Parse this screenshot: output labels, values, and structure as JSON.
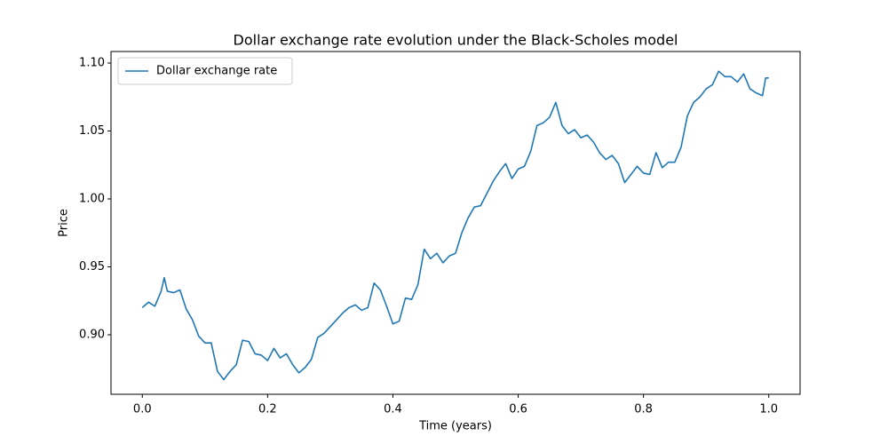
{
  "chart_data": {
    "type": "line",
    "title": "Dollar exchange rate evolution under the Black-Scholes model",
    "xlabel": "Time (years)",
    "ylabel": "Price",
    "legend": "upper left",
    "x": [
      0,
      0.01,
      0.02,
      0.03,
      0.035,
      0.04,
      0.05,
      0.06,
      0.07,
      0.08,
      0.09,
      0.1,
      0.11,
      0.12,
      0.13,
      0.14,
      0.15,
      0.16,
      0.17,
      0.18,
      0.19,
      0.2,
      0.21,
      0.22,
      0.23,
      0.24,
      0.25,
      0.26,
      0.27,
      0.28,
      0.29,
      0.3,
      0.31,
      0.32,
      0.33,
      0.34,
      0.35,
      0.36,
      0.37,
      0.38,
      0.39,
      0.4,
      0.41,
      0.42,
      0.43,
      0.44,
      0.45,
      0.46,
      0.47,
      0.48,
      0.49,
      0.5,
      0.51,
      0.52,
      0.53,
      0.54,
      0.55,
      0.56,
      0.57,
      0.58,
      0.59,
      0.6,
      0.61,
      0.62,
      0.63,
      0.64,
      0.65,
      0.66,
      0.67,
      0.68,
      0.69,
      0.7,
      0.71,
      0.72,
      0.73,
      0.74,
      0.75,
      0.76,
      0.77,
      0.78,
      0.79,
      0.8,
      0.81,
      0.82,
      0.83,
      0.84,
      0.85,
      0.86,
      0.87,
      0.88,
      0.89,
      0.9,
      0.91,
      0.92,
      0.93,
      0.94,
      0.95,
      0.96,
      0.97,
      0.98,
      0.99,
      0.995,
      1.0
    ],
    "series": [
      {
        "name": "Dollar exchange rate",
        "color": "#1f77b4",
        "values": [
          0.92,
          0.924,
          0.921,
          0.932,
          0.942,
          0.932,
          0.931,
          0.933,
          0.919,
          0.911,
          0.899,
          0.894,
          0.894,
          0.873,
          0.867,
          0.873,
          0.878,
          0.896,
          0.895,
          0.886,
          0.885,
          0.881,
          0.89,
          0.883,
          0.886,
          0.878,
          0.872,
          0.876,
          0.882,
          0.898,
          0.901,
          0.906,
          0.911,
          0.916,
          0.92,
          0.922,
          0.918,
          0.92,
          0.938,
          0.933,
          0.921,
          0.908,
          0.91,
          0.927,
          0.926,
          0.937,
          0.963,
          0.956,
          0.96,
          0.953,
          0.958,
          0.96,
          0.975,
          0.986,
          0.994,
          0.995,
          1.004,
          1.013,
          1.02,
          1.026,
          1.015,
          1.022,
          1.024,
          1.035,
          1.054,
          1.056,
          1.06,
          1.071,
          1.054,
          1.048,
          1.051,
          1.045,
          1.047,
          1.042,
          1.034,
          1.029,
          1.032,
          1.026,
          1.012,
          1.018,
          1.024,
          1.019,
          1.018,
          1.034,
          1.023,
          1.027,
          1.027,
          1.038,
          1.061,
          1.071,
          1.075,
          1.081,
          1.084,
          1.094,
          1.09,
          1.09,
          1.086,
          1.092,
          1.081,
          1.078,
          1.076,
          1.089,
          1.089
        ]
      }
    ],
    "xlim": [
      -0.05,
      1.05
    ],
    "ylim": [
      0.8562,
      1.1085
    ],
    "xticks": [
      {
        "value": 0,
        "label": "0.0"
      },
      {
        "value": 0.2,
        "label": "0.2"
      },
      {
        "value": 0.4,
        "label": "0.4"
      },
      {
        "value": 0.6,
        "label": "0.6"
      },
      {
        "value": 0.8,
        "label": "0.8"
      },
      {
        "value": 1,
        "label": "1.0"
      }
    ],
    "yticks": [
      {
        "value": 0.9,
        "label": "0.90"
      },
      0.95,
      {
        "value": 1,
        "label": "1.00"
      },
      1.05,
      {
        "value": 1.1,
        "label": "1.10"
      }
    ]
  }
}
